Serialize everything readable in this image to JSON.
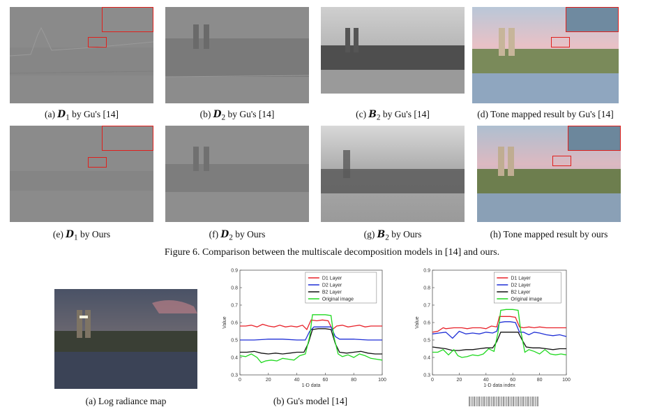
{
  "figure6": {
    "panels": [
      {
        "label": "(a)",
        "sym": "D",
        "sub": "1",
        "rest": " by Gu's [14]",
        "style": "detail"
      },
      {
        "label": "(b)",
        "sym": "D",
        "sub": "2",
        "rest": " by Gu's [14]",
        "style": "detail2"
      },
      {
        "label": "(c)",
        "sym": "B",
        "sub": "2",
        "rest": " by Gu's [14]",
        "style": "base"
      },
      {
        "label": "(d)",
        "sym": "",
        "sub": "",
        "rest": "Tone mapped result by Gu's [14]",
        "style": "color"
      },
      {
        "label": "(e)",
        "sym": "D",
        "sub": "1",
        "rest": " by Ours",
        "style": "detail"
      },
      {
        "label": "(f)",
        "sym": "D",
        "sub": "2",
        "rest": " by Ours",
        "style": "detail2"
      },
      {
        "label": "(g)",
        "sym": "B",
        "sub": "2",
        "rest": " by Ours",
        "style": "base"
      },
      {
        "label": "(h)",
        "sym": "",
        "sub": "",
        "rest": "Tone mapped result by ours",
        "style": "color"
      }
    ],
    "caption": "Figure 6. Comparison between the multiscale decomposition models in [14] and ours."
  },
  "figure7": {
    "captions": [
      "(a) Log radiance map",
      "(b) Gu's model [14]"
    ],
    "colors": {
      "D1 Layer": "#e8222a",
      "D2 Layer": "#1f2fd6",
      "B2 Layer": "#111111",
      "Original image": "#1fd81f"
    }
  },
  "chart_data": [
    {
      "type": "line",
      "xlabel": "1-D data",
      "ylabel": "Value",
      "xlim": [
        0,
        100
      ],
      "ylim": [
        0.3,
        0.9
      ],
      "xticks": [
        0,
        20,
        40,
        60,
        80,
        100
      ],
      "yticks": [
        0.3,
        0.4,
        0.5,
        0.6,
        0.7,
        0.8,
        0.9
      ],
      "legend": "top-right",
      "series": [
        {
          "name": "D1 Layer",
          "x": [
            0,
            4,
            8,
            12,
            16,
            20,
            24,
            28,
            32,
            36,
            40,
            44,
            47,
            50,
            54,
            58,
            62,
            65,
            68,
            72,
            76,
            80,
            84,
            88,
            92,
            96,
            100
          ],
          "values": [
            0.58,
            0.58,
            0.585,
            0.575,
            0.59,
            0.58,
            0.575,
            0.585,
            0.575,
            0.58,
            0.575,
            0.585,
            0.56,
            0.615,
            0.61,
            0.615,
            0.61,
            0.56,
            0.58,
            0.585,
            0.575,
            0.58,
            0.585,
            0.575,
            0.58,
            0.58,
            0.58
          ]
        },
        {
          "name": "D2 Layer",
          "x": [
            0,
            10,
            20,
            30,
            40,
            46,
            49,
            52,
            56,
            60,
            64,
            67,
            70,
            80,
            90,
            100
          ],
          "values": [
            0.5,
            0.5,
            0.505,
            0.505,
            0.5,
            0.5,
            0.55,
            0.575,
            0.575,
            0.575,
            0.575,
            0.52,
            0.505,
            0.505,
            0.5,
            0.5
          ]
        },
        {
          "name": "B2 Layer",
          "x": [
            0,
            5,
            10,
            15,
            20,
            25,
            30,
            35,
            40,
            45,
            48,
            51,
            55,
            60,
            64,
            67,
            70,
            75,
            80,
            85,
            90,
            95,
            100
          ],
          "values": [
            0.43,
            0.43,
            0.435,
            0.425,
            0.42,
            0.425,
            0.42,
            0.425,
            0.43,
            0.43,
            0.48,
            0.56,
            0.565,
            0.565,
            0.56,
            0.48,
            0.43,
            0.425,
            0.43,
            0.435,
            0.425,
            0.42,
            0.42
          ]
        },
        {
          "name": "Original image",
          "x": [
            0,
            4,
            8,
            12,
            15,
            18,
            22,
            26,
            30,
            34,
            38,
            42,
            46,
            49,
            51,
            55,
            60,
            64,
            66,
            69,
            72,
            76,
            80,
            84,
            88,
            92,
            96,
            100
          ],
          "values": [
            0.41,
            0.405,
            0.42,
            0.4,
            0.37,
            0.38,
            0.385,
            0.38,
            0.395,
            0.39,
            0.385,
            0.41,
            0.42,
            0.52,
            0.645,
            0.645,
            0.645,
            0.64,
            0.52,
            0.42,
            0.405,
            0.415,
            0.4,
            0.42,
            0.41,
            0.395,
            0.39,
            0.385
          ]
        }
      ]
    },
    {
      "type": "line",
      "xlabel": "1-D data index",
      "ylabel": "Value",
      "xlim": [
        0,
        100
      ],
      "ylim": [
        0.3,
        0.9
      ],
      "xticks": [
        0,
        20,
        40,
        60,
        80,
        100
      ],
      "yticks": [
        0.3,
        0.4,
        0.5,
        0.6,
        0.7,
        0.8,
        0.9
      ],
      "legend": "top-right",
      "series": [
        {
          "name": "D1 Layer",
          "x": [
            0,
            4,
            8,
            10,
            16,
            22,
            26,
            30,
            36,
            40,
            44,
            48,
            50,
            54,
            58,
            62,
            65,
            68,
            72,
            76,
            80,
            85,
            90,
            95,
            100
          ],
          "values": [
            0.545,
            0.55,
            0.57,
            0.565,
            0.57,
            0.57,
            0.565,
            0.57,
            0.57,
            0.565,
            0.58,
            0.575,
            0.635,
            0.635,
            0.635,
            0.63,
            0.575,
            0.57,
            0.575,
            0.57,
            0.575,
            0.57,
            0.57,
            0.57,
            0.57
          ]
        },
        {
          "name": "D2 Layer",
          "x": [
            0,
            5,
            10,
            15,
            20,
            25,
            30,
            35,
            40,
            45,
            48,
            50,
            54,
            58,
            62,
            65,
            68,
            72,
            76,
            80,
            85,
            90,
            95,
            100
          ],
          "values": [
            0.535,
            0.54,
            0.545,
            0.51,
            0.55,
            0.535,
            0.54,
            0.535,
            0.545,
            0.54,
            0.55,
            0.6,
            0.605,
            0.605,
            0.6,
            0.545,
            0.545,
            0.53,
            0.545,
            0.54,
            0.53,
            0.525,
            0.53,
            0.52
          ]
        },
        {
          "name": "B2 Layer",
          "x": [
            0,
            5,
            10,
            15,
            20,
            25,
            30,
            35,
            40,
            45,
            48,
            51,
            55,
            60,
            64,
            67,
            70,
            75,
            80,
            85,
            90,
            95,
            100
          ],
          "values": [
            0.46,
            0.455,
            0.45,
            0.44,
            0.44,
            0.445,
            0.445,
            0.45,
            0.455,
            0.455,
            0.49,
            0.545,
            0.545,
            0.545,
            0.545,
            0.5,
            0.46,
            0.455,
            0.455,
            0.45,
            0.445,
            0.45,
            0.45
          ]
        },
        {
          "name": "Original image",
          "x": [
            0,
            4,
            8,
            12,
            16,
            19,
            22,
            26,
            30,
            34,
            38,
            42,
            46,
            49,
            51,
            55,
            60,
            64,
            66,
            69,
            72,
            76,
            80,
            84,
            88,
            92,
            96,
            100
          ],
          "values": [
            0.43,
            0.43,
            0.445,
            0.415,
            0.445,
            0.41,
            0.4,
            0.405,
            0.415,
            0.41,
            0.42,
            0.45,
            0.435,
            0.545,
            0.67,
            0.675,
            0.675,
            0.67,
            0.55,
            0.43,
            0.445,
            0.435,
            0.42,
            0.445,
            0.42,
            0.415,
            0.42,
            0.415
          ]
        }
      ]
    }
  ]
}
